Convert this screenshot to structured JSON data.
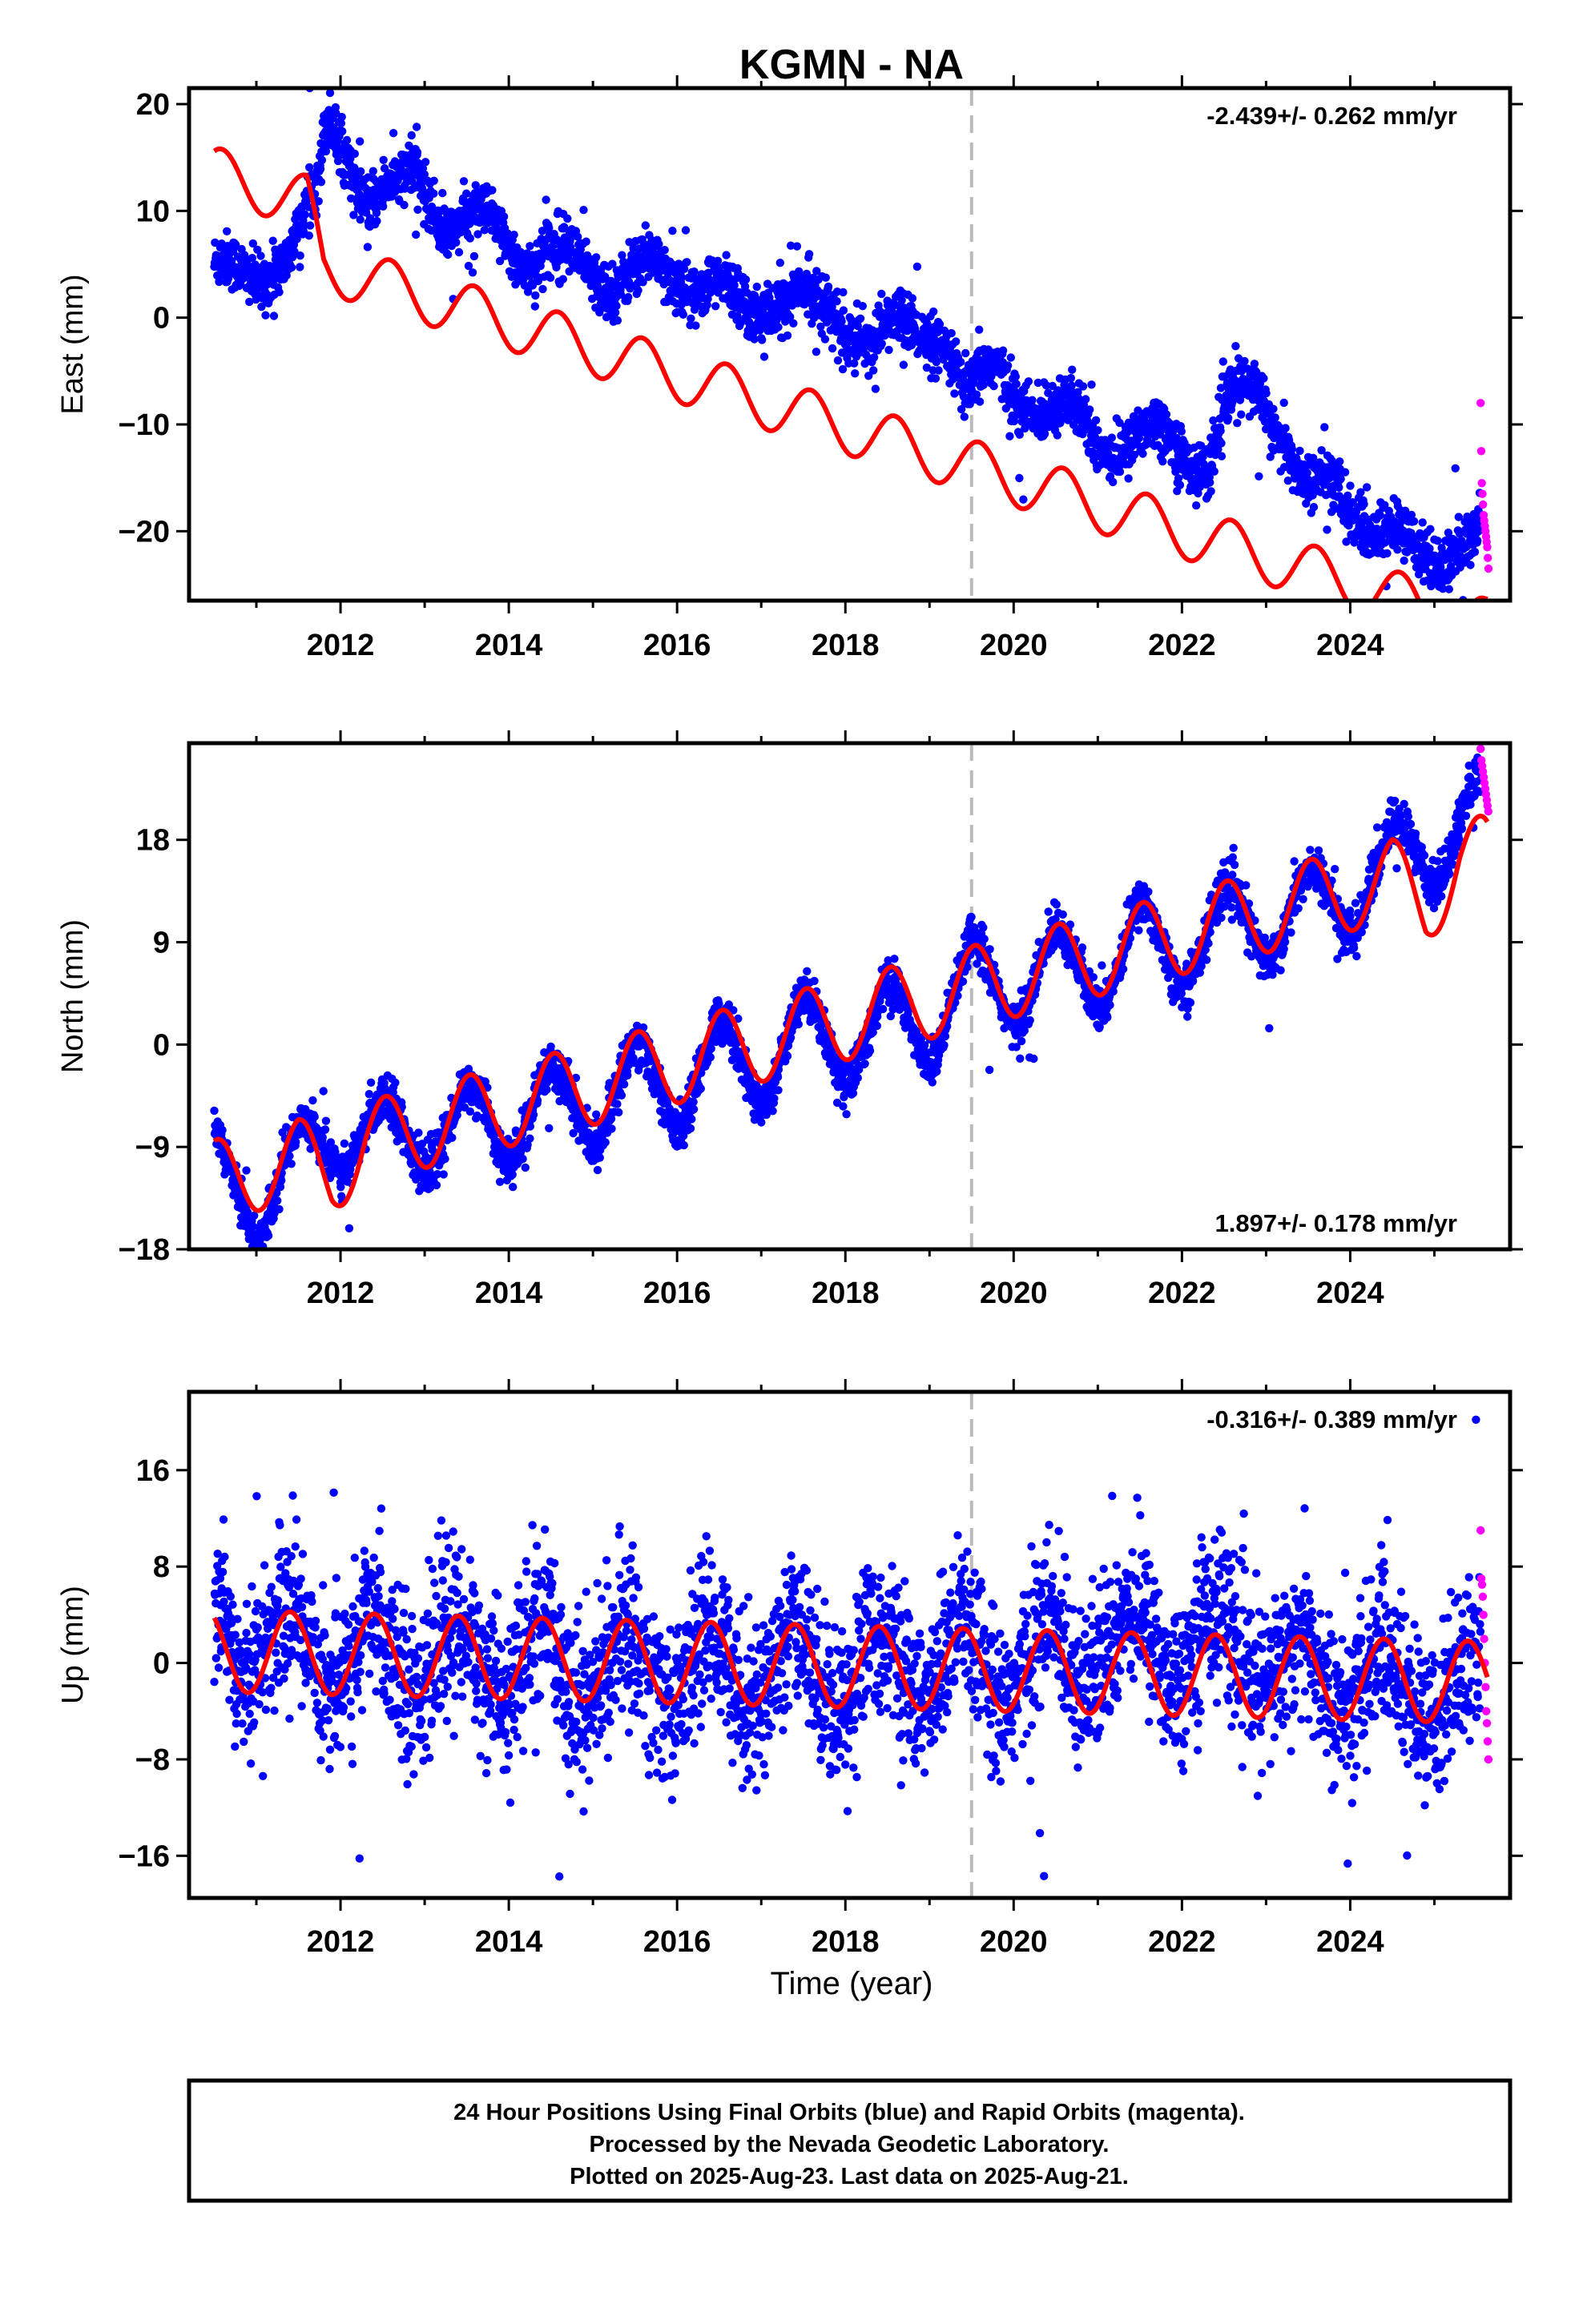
{
  "title": "KGMN - NA",
  "xlabel": "Time (year)",
  "footer": [
    "24 Hour Positions Using Final Orbits (blue) and Rapid Orbits (magenta).",
    "Processed by the Nevada Geodetic Laboratory.",
    "Plotted on 2025-Aug-23. Last data on 2025-Aug-21."
  ],
  "colors": {
    "final": "#0000ff",
    "rapid": "#ff00ff",
    "model": "#ff0000",
    "marker_line": "#bbbbbb",
    "frame": "#000000"
  },
  "chart_data": [
    {
      "type": "scatter",
      "component": "East",
      "ylabel": "East (mm)",
      "rate_text": "-2.439+/- 0.262 mm/yr",
      "rate_position": "top-right",
      "xlim": [
        2010.2,
        2025.9
      ],
      "ylim": [
        -26.5,
        21.5
      ],
      "yticks": [
        20,
        10,
        0,
        -10,
        -20
      ],
      "xticks": [
        2012,
        2014,
        2016,
        2018,
        2020,
        2022,
        2024
      ],
      "vertical_marker_year": 2019.5,
      "data_range": [
        2010.5,
        2025.65
      ],
      "rapid_start": 2025.55,
      "observed_trend": [
        [
          2010.5,
          4
        ],
        [
          2011.0,
          4.5
        ],
        [
          2011.4,
          5.5
        ],
        [
          2011.7,
          11
        ],
        [
          2011.85,
          19
        ],
        [
          2012.1,
          16
        ],
        [
          2012.3,
          10
        ],
        [
          2012.7,
          12
        ],
        [
          2012.9,
          14.5
        ],
        [
          2013.3,
          8
        ],
        [
          2013.8,
          9
        ],
        [
          2014.3,
          5
        ],
        [
          2014.8,
          6
        ],
        [
          2015.3,
          3
        ],
        [
          2015.8,
          5
        ],
        [
          2016.3,
          3
        ],
        [
          2016.8,
          1
        ],
        [
          2017.3,
          2
        ],
        [
          2017.8,
          0.5
        ],
        [
          2018.3,
          -2
        ],
        [
          2018.8,
          -1
        ],
        [
          2019.2,
          -2
        ],
        [
          2019.45,
          -8
        ],
        [
          2019.8,
          -4.5
        ],
        [
          2020.3,
          -9
        ],
        [
          2020.8,
          -9.5
        ],
        [
          2021.3,
          -12.5
        ],
        [
          2021.8,
          -10.5
        ],
        [
          2022.3,
          -14
        ],
        [
          2022.6,
          -8
        ],
        [
          2022.95,
          -6
        ],
        [
          2023.2,
          -11
        ],
        [
          2023.5,
          -17
        ],
        [
          2023.8,
          -15.5
        ],
        [
          2024.3,
          -20
        ],
        [
          2024.6,
          -21.5
        ],
        [
          2025.0,
          -22
        ],
        [
          2025.5,
          -21
        ]
      ],
      "noise_mm": 1.3,
      "seasonal_amp_mm": 1.4,
      "rapid_values": [
        -8,
        -12.5,
        -15.5,
        -16.5,
        -17.5,
        -18.5,
        -19,
        -19.5,
        -20,
        -20.5,
        -21,
        -21.5,
        -22.5,
        -23.5
      ],
      "model": {
        "linear": [
          [
            2010.5,
            8.0
          ],
          [
            2025.6,
            -28.8
          ]
        ],
        "seasonal_amp": 2.5,
        "seasonal_phase": 1.0,
        "extra": [
          [
            2010.5,
            5.5
          ],
          [
            2011.6,
            5.5
          ],
          [
            2011.8,
            0
          ],
          [
            2025.6,
            0
          ]
        ]
      }
    },
    {
      "type": "scatter",
      "component": "North",
      "ylabel": "North (mm)",
      "rate_text": "1.897+/- 0.178 mm/yr",
      "rate_position": "bottom-right",
      "xlim": [
        2010.2,
        2025.9
      ],
      "ylim": [
        -18,
        26.5
      ],
      "yticks": [
        18,
        9,
        0,
        -9,
        -18
      ],
      "xticks": [
        2012,
        2014,
        2016,
        2018,
        2020,
        2022,
        2024
      ],
      "vertical_marker_year": 2019.5,
      "data_range": [
        2010.5,
        2025.65
      ],
      "rapid_start": 2025.55,
      "observed_trend": [
        [
          2010.5,
          -10
        ],
        [
          2010.8,
          -13
        ],
        [
          2011.0,
          -15
        ],
        [
          2011.3,
          -11
        ],
        [
          2011.6,
          -9
        ],
        [
          2012.0,
          -8.5
        ],
        [
          2012.5,
          -7
        ],
        [
          2013.0,
          -9
        ],
        [
          2013.5,
          -6
        ],
        [
          2014.0,
          -8
        ],
        [
          2014.5,
          -4
        ],
        [
          2015.0,
          -6.5
        ],
        [
          2015.5,
          -2
        ],
        [
          2016.0,
          -5
        ],
        [
          2016.5,
          0
        ],
        [
          2017.0,
          -3
        ],
        [
          2017.5,
          2
        ],
        [
          2018.0,
          -1
        ],
        [
          2018.5,
          3
        ],
        [
          2019.0,
          0.5
        ],
        [
          2019.5,
          7
        ],
        [
          2020.0,
          4
        ],
        [
          2020.5,
          8
        ],
        [
          2021.0,
          5.5
        ],
        [
          2021.5,
          10
        ],
        [
          2022.0,
          7.5
        ],
        [
          2022.5,
          11.5
        ],
        [
          2023.0,
          10
        ],
        [
          2023.5,
          13
        ],
        [
          2024.0,
          12
        ],
        [
          2024.5,
          17
        ],
        [
          2025.0,
          16.5
        ],
        [
          2025.5,
          21
        ]
      ],
      "noise_mm": 1.0,
      "seasonal_amp_mm": 2.6,
      "rapid_values": [
        26,
        25,
        24.5,
        24,
        23.5,
        23,
        22.5,
        22,
        21.5,
        21,
        20.5
      ],
      "model": {
        "linear": [
          [
            2010.5,
            -12.0
          ],
          [
            2025.6,
            16.6
          ]
        ],
        "seasonal_amp": 3.6,
        "seasonal_phase": 1.35,
        "extra": [
          [
            2010.5,
            0
          ],
          [
            2011.5,
            0
          ],
          [
            2011.9,
            -2
          ],
          [
            2012.3,
            0
          ],
          [
            2024.5,
            0
          ],
          [
            2024.9,
            -3
          ],
          [
            2025.3,
            0
          ],
          [
            2025.6,
            0
          ]
        ]
      }
    },
    {
      "type": "scatter",
      "component": "Up",
      "ylabel": "Up (mm)",
      "rate_text": "-0.316+/- 0.389 mm/yr",
      "rate_position": "top-right",
      "xlim": [
        2010.2,
        2025.9
      ],
      "ylim": [
        -19.5,
        22.5
      ],
      "yticks": [
        16,
        8,
        0,
        -8,
        -16
      ],
      "xticks": [
        2012,
        2014,
        2016,
        2018,
        2020,
        2022,
        2024
      ],
      "vertical_marker_year": 2019.5,
      "data_range": [
        2010.5,
        2025.65
      ],
      "rapid_start": 2025.55,
      "observed_trend": [
        [
          2010.5,
          3
        ],
        [
          2012,
          1
        ],
        [
          2014,
          0
        ],
        [
          2016,
          -0.5
        ],
        [
          2018,
          -0.5
        ],
        [
          2020,
          0
        ],
        [
          2021.5,
          2
        ],
        [
          2022.5,
          2
        ],
        [
          2023.5,
          -1
        ],
        [
          2024.5,
          -2
        ],
        [
          2025.5,
          -3
        ]
      ],
      "noise_mm": 3.3,
      "seasonal_amp_mm": 3.0,
      "rapid_values": [
        11,
        7,
        6.5,
        5.5,
        4,
        2,
        0,
        -2,
        -4,
        -5,
        -6.5,
        -8
      ],
      "model": {
        "linear": [
          [
            2010.5,
            1.0
          ],
          [
            2025.6,
            -1.6
          ]
        ],
        "seasonal_amp": 3.4,
        "seasonal_phase": 2.2,
        "extra": [
          [
            2010.5,
            0
          ],
          [
            2025.6,
            0
          ]
        ]
      }
    }
  ]
}
